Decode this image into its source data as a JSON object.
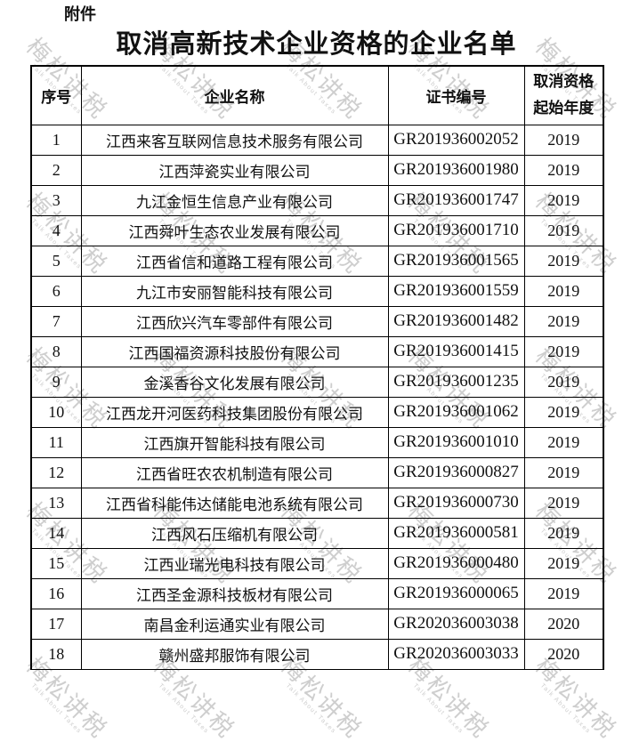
{
  "page": {
    "attachment_label": "附件",
    "title": "取消高新技术企业资格的企业名单"
  },
  "watermark": {
    "text": "梅松讲税",
    "subtext": "Talk About Taxes",
    "color": "#c2c2c2"
  },
  "table": {
    "headers": {
      "no": "序号",
      "name": "企业名称",
      "cert": "证书编号",
      "year_line1": "取消资格",
      "year_line2": "起始年度"
    },
    "rows": [
      {
        "no": "1",
        "name": "江西来客互联网信息技术服务有限公司",
        "cert": "GR201936002052",
        "year": "2019"
      },
      {
        "no": "2",
        "name": "江西萍瓷实业有限公司",
        "cert": "GR201936001980",
        "year": "2019"
      },
      {
        "no": "3",
        "name": "九江金恒生信息产业有限公司",
        "cert": "GR201936001747",
        "year": "2019"
      },
      {
        "no": "4",
        "name": "江西舜叶生态农业发展有限公司",
        "cert": "GR201936001710",
        "year": "2019"
      },
      {
        "no": "5",
        "name": "江西省信和道路工程有限公司",
        "cert": "GR201936001565",
        "year": "2019"
      },
      {
        "no": "6",
        "name": "九江市安丽智能科技有限公司",
        "cert": "GR201936001559",
        "year": "2019"
      },
      {
        "no": "7",
        "name": "江西欣兴汽车零部件有限公司",
        "cert": "GR201936001482",
        "year": "2019"
      },
      {
        "no": "8",
        "name": "江西国福资源科技股份有限公司",
        "cert": "GR201936001415",
        "year": "2019"
      },
      {
        "no": "9",
        "name": "金溪香谷文化发展有限公司",
        "cert": "GR201936001235",
        "year": "2019"
      },
      {
        "no": "10",
        "name": "江西龙开河医药科技集团股份有限公司",
        "cert": "GR201936001062",
        "year": "2019"
      },
      {
        "no": "11",
        "name": "江西旗开智能科技有限公司",
        "cert": "GR201936001010",
        "year": "2019"
      },
      {
        "no": "12",
        "name": "江西省旺农农机制造有限公司",
        "cert": "GR201936000827",
        "year": "2019"
      },
      {
        "no": "13",
        "name": "江西省科能伟达储能电池系统有限公司",
        "cert": "GR201936000730",
        "year": "2019"
      },
      {
        "no": "14",
        "name": "江西风石压缩机有限公司",
        "cert": "GR201936000581",
        "year": "2019"
      },
      {
        "no": "15",
        "name": "江西业瑞光电科技有限公司",
        "cert": "GR201936000480",
        "year": "2019"
      },
      {
        "no": "16",
        "name": "江西圣金源科技板材有限公司",
        "cert": "GR201936000065",
        "year": "2019"
      },
      {
        "no": "17",
        "name": "南昌金利运通实业有限公司",
        "cert": "GR202036003038",
        "year": "2020"
      },
      {
        "no": "18",
        "name": "赣州盛邦服饰有限公司",
        "cert": "GR202036003033",
        "year": "2020"
      }
    ]
  }
}
